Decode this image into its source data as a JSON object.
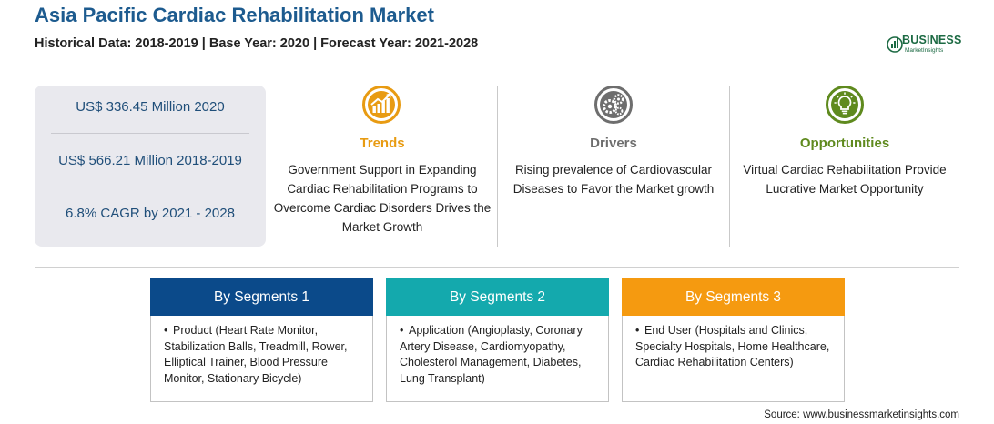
{
  "header": {
    "title": "Asia Pacific Cardiac Rehabilitation Market",
    "subtitle": "Historical Data: 2018-2019 | Base Year: 2020 | Forecast Year: 2021-2028"
  },
  "logo": {
    "name": "BUSINESS",
    "tagline": "MarketInsights",
    "color": "#1c6a43"
  },
  "stats": [
    "US$ 336.45 Million 2020",
    "US$ 566.21 Million 2018-2019",
    "6.8% CAGR by 2021 - 2028"
  ],
  "columns": [
    {
      "icon": "trend-chart-icon",
      "title": "Trends",
      "color": "#e89b12",
      "text": "Government Support in Expanding Cardiac Rehabilitation Programs to Overcome Cardiac Disorders Drives the Market Growth"
    },
    {
      "icon": "gears-icon",
      "title": "Drivers",
      "color": "#6e6e6e",
      "text": "Rising prevalence of Cardiovascular Diseases to Favor the Market growth"
    },
    {
      "icon": "lightbulb-icon",
      "title": "Opportunities",
      "color": "#5f8a1e",
      "text": "Virtual Cardiac Rehabilitation Provide Lucrative Market Opportunity"
    }
  ],
  "segments": [
    {
      "title": "By Segments 1",
      "color": "#0b4a8a",
      "text": "Product (Heart Rate Monitor, Stabilization Balls, Treadmill, Rower, Elliptical Trainer, Blood Pressure Monitor, Stationary Bicycle)"
    },
    {
      "title": "By Segments 2",
      "color": "#14a9ad",
      "text": "Application (Angioplasty, Coronary Artery Disease, Cardiomyopathy, Cholesterol Management, Diabetes, Lung Transplant)"
    },
    {
      "title": "By Segments 3",
      "color": "#f59a10",
      "text": "End User (Hospitals and Clinics, Specialty Hospitals, Home Healthcare, Cardiac Rehabilitation Centers)"
    }
  ],
  "source": "Source: www.businessmarketinsights.com"
}
